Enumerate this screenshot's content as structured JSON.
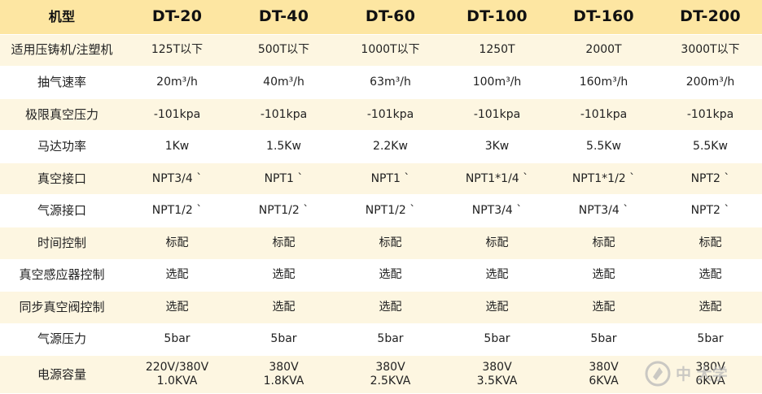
{
  "table": {
    "headers": [
      "机型",
      "DT-20",
      "DT-40",
      "DT-60",
      "DT-100",
      "DT-160",
      "DT-200"
    ],
    "rows": [
      {
        "label": "适用压铸机/注塑机",
        "cells": [
          "125T以下",
          "500T以下",
          "1000T以下",
          "1250T",
          "2000T",
          "3000T以下"
        ]
      },
      {
        "label": "抽气速率",
        "cells": [
          "20m³/h",
          "40m³/h",
          "63m³/h",
          "100m³/h",
          "160m³/h",
          "200m³/h"
        ]
      },
      {
        "label": "极限真空压力",
        "cells": [
          "-101kpa",
          "-101kpa",
          "-101kpa",
          "-101kpa",
          "-101kpa",
          "-101kpa"
        ]
      },
      {
        "label": "马达功率",
        "cells": [
          "1Kw",
          "1.5Kw",
          "2.2Kw",
          "3Kw",
          "5.5Kw",
          "5.5Kw"
        ]
      },
      {
        "label": "真空接口",
        "cells": [
          "NPT3/4 ˋ",
          "NPT1 ˋ",
          "NPT1 ˋ",
          "NPT1*1/4 ˋ",
          "NPT1*1/2 ˋ",
          "NPT2 ˋ"
        ]
      },
      {
        "label": "气源接口",
        "cells": [
          "NPT1/2 ˋ",
          "NPT1/2 ˋ",
          "NPT1/2 ˋ",
          "NPT3/4 ˋ",
          "NPT3/4 ˋ",
          "NPT2 ˋ"
        ]
      },
      {
        "label": "时间控制",
        "cells": [
          "标配",
          "标配",
          "标配",
          "标配",
          "标配",
          "标配"
        ]
      },
      {
        "label": "真空感应器控制",
        "cells": [
          "选配",
          "选配",
          "选配",
          "选配",
          "选配",
          "选配"
        ]
      },
      {
        "label": "同步真空阀控制",
        "cells": [
          "选配",
          "选配",
          "选配",
          "选配",
          "选配",
          "选配"
        ]
      },
      {
        "label": "气源压力",
        "cells": [
          "5bar",
          "5bar",
          "5bar",
          "5bar",
          "5bar",
          "5bar"
        ]
      }
    ],
    "last_row": {
      "label": "电源容量",
      "cells": [
        {
          "line1": "220V/380V",
          "line2": "1.0KVA"
        },
        {
          "line1": "380V",
          "line2": "1.8KVA"
        },
        {
          "line1": "380V",
          "line2": "2.5KVA"
        },
        {
          "line1": "380V",
          "line2": "3.5KVA"
        },
        {
          "line1": "380V",
          "line2": "6KVA"
        },
        {
          "line1": "380V",
          "line2": "6KVA"
        }
      ]
    }
  },
  "watermark": {
    "text": "中      大学",
    "color": "#b9b9b9"
  },
  "colors": {
    "header_bg": "#fde6a2",
    "odd_row_bg": "#fdf6e1",
    "even_row_bg": "#ffffff"
  }
}
